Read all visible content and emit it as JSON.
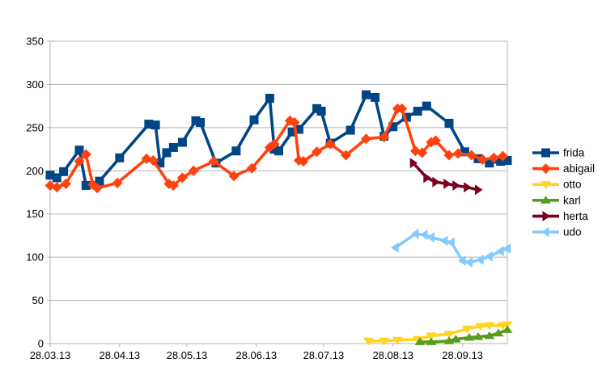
{
  "chart_data": {
    "type": "line",
    "title": "",
    "background": "#ffffff",
    "grid": true,
    "legend_position": "right",
    "plot_colors": {
      "grid": "#b3b3b3",
      "axis": "#b3b3b3",
      "text": "#000000"
    },
    "x_axis": {
      "label": "",
      "tick_labels": [
        "28.03.13",
        "28.04.13",
        "28.05.13",
        "28.06.13",
        "28.07.13",
        "28.08.13",
        "28.09.13"
      ],
      "tick_positions_days": [
        0,
        31,
        61,
        92,
        122,
        153,
        184
      ],
      "range_days": [
        0,
        204
      ]
    },
    "y_axis": {
      "label": "",
      "tick_labels": [
        "0",
        "50",
        "100",
        "150",
        "200",
        "250",
        "300",
        "350"
      ],
      "tick_values": [
        0,
        50,
        100,
        150,
        200,
        250,
        300,
        350
      ],
      "range": [
        0,
        350
      ]
    },
    "series": [
      {
        "name": "frida",
        "color": "#004586",
        "marker": "square",
        "points": [
          [
            0,
            195
          ],
          [
            3,
            192
          ],
          [
            6,
            199
          ],
          [
            13,
            224
          ],
          [
            16,
            183
          ],
          [
            22,
            188
          ],
          [
            31,
            215
          ],
          [
            44,
            254
          ],
          [
            47,
            253
          ],
          [
            49,
            209
          ],
          [
            52,
            221
          ],
          [
            55,
            227
          ],
          [
            59,
            233
          ],
          [
            65,
            258
          ],
          [
            67,
            256
          ],
          [
            74,
            209
          ],
          [
            83,
            223
          ],
          [
            91,
            259
          ],
          [
            98,
            284
          ],
          [
            100,
            225
          ],
          [
            102,
            223
          ],
          [
            108,
            245
          ],
          [
            111,
            248
          ],
          [
            119,
            272
          ],
          [
            121,
            269
          ],
          [
            125,
            232
          ],
          [
            134,
            247
          ],
          [
            141,
            288
          ],
          [
            145,
            285
          ],
          [
            149,
            240
          ],
          [
            153,
            251
          ],
          [
            159,
            262
          ],
          [
            164,
            269
          ],
          [
            168,
            275
          ],
          [
            178,
            255
          ],
          [
            185,
            222
          ],
          [
            191,
            214
          ],
          [
            196,
            209
          ],
          [
            201,
            211
          ],
          [
            204,
            212
          ]
        ]
      },
      {
        "name": "abigail",
        "color": "#FF420E",
        "marker": "diamond",
        "points": [
          [
            0,
            183
          ],
          [
            3,
            181
          ],
          [
            7,
            185
          ],
          [
            13,
            211
          ],
          [
            16,
            219
          ],
          [
            19,
            184
          ],
          [
            21,
            180
          ],
          [
            30,
            186
          ],
          [
            43,
            214
          ],
          [
            46,
            212
          ],
          [
            53,
            185
          ],
          [
            55,
            183
          ],
          [
            59,
            192
          ],
          [
            64,
            200
          ],
          [
            73,
            211
          ],
          [
            82,
            194
          ],
          [
            90,
            203
          ],
          [
            98,
            227
          ],
          [
            100,
            231
          ],
          [
            107,
            258
          ],
          [
            109,
            256
          ],
          [
            111,
            212
          ],
          [
            113,
            211
          ],
          [
            119,
            222
          ],
          [
            125,
            231
          ],
          [
            132,
            218
          ],
          [
            141,
            237
          ],
          [
            149,
            239
          ],
          [
            155,
            272
          ],
          [
            157,
            272
          ],
          [
            163,
            223
          ],
          [
            166,
            221
          ],
          [
            170,
            233
          ],
          [
            172,
            235
          ],
          [
            178,
            218
          ],
          [
            182,
            220
          ],
          [
            188,
            218
          ],
          [
            193,
            213
          ],
          [
            198,
            215
          ],
          [
            202,
            217
          ]
        ]
      },
      {
        "name": "otto",
        "color": "#FFD320",
        "marker": "triangle-down",
        "points": [
          [
            142,
            3
          ],
          [
            149,
            3
          ],
          [
            155,
            4
          ],
          [
            164,
            5
          ],
          [
            170,
            9
          ],
          [
            178,
            11
          ],
          [
            186,
            17
          ],
          [
            192,
            20
          ],
          [
            196,
            21
          ],
          [
            202,
            21
          ],
          [
            204,
            22
          ]
        ]
      },
      {
        "name": "karl",
        "color": "#579D1C",
        "marker": "triangle-up",
        "points": [
          [
            165,
            2
          ],
          [
            170,
            2
          ],
          [
            178,
            3
          ],
          [
            181,
            5
          ],
          [
            187,
            7
          ],
          [
            191,
            8
          ],
          [
            196,
            9
          ],
          [
            200,
            12
          ],
          [
            204,
            16
          ]
        ]
      },
      {
        "name": "herta",
        "color": "#7E0021",
        "marker": "triangle-right",
        "points": [
          [
            162,
            209
          ],
          [
            168,
            192
          ],
          [
            172,
            187
          ],
          [
            177,
            185
          ],
          [
            181,
            183
          ],
          [
            186,
            181
          ],
          [
            191,
            178
          ]
        ]
      },
      {
        "name": "udo",
        "color": "#83CAFF",
        "marker": "triangle-left",
        "points": [
          [
            154,
            111
          ],
          [
            163,
            127
          ],
          [
            167,
            126
          ],
          [
            170,
            123
          ],
          [
            176,
            119
          ],
          [
            179,
            117
          ],
          [
            184,
            96
          ],
          [
            187,
            94
          ],
          [
            192,
            97
          ],
          [
            196,
            101
          ],
          [
            201,
            107
          ],
          [
            204,
            110
          ]
        ]
      }
    ]
  }
}
